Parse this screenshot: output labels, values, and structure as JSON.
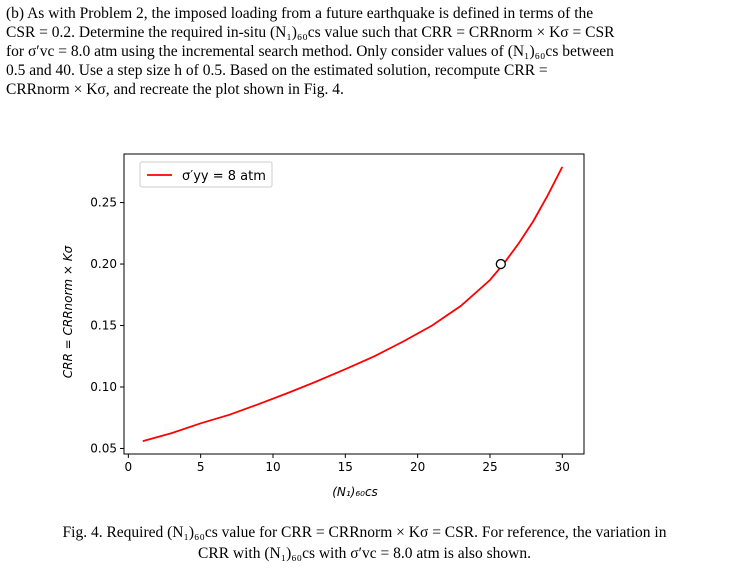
{
  "problem": {
    "lines": [
      "(b) As with Problem 2, the imposed loading from a future earthquake is defined in terms of the",
      "CSR = 0.2. Determine the required in-situ (N₁)₆₀cs value such that CRR = CRRnorm × Kσ = CSR",
      "for σ′vc = 8.0 atm using the incremental search method. Only consider values of (N₁)₆₀cs between",
      "0.5 and 40. Use a step size h of 0.5. Based on the estimated solution, recompute CRR =",
      "CRRnorm × Kσ, and recreate the plot shown in Fig. 4."
    ]
  },
  "caption": {
    "line1": "Fig. 4. Required (N₁)₆₀cs value for CRR = CRRnorm × Kσ = CSR. For reference, the variation in",
    "line2": "CRR with (N₁)₆₀cs with σ′vc = 8.0 atm is also shown."
  },
  "chart_data": {
    "type": "line",
    "xlabel": "(N₁)₆₀cs",
    "ylabel": "CRR = CRRnorm × Kσ",
    "xlim": [
      -0.3,
      31.5
    ],
    "ylim": [
      0.0455,
      0.2895
    ],
    "xticks": [
      "0",
      "5",
      "10",
      "15",
      "20",
      "25",
      "30"
    ],
    "yticks": [
      "0.05",
      "0.10",
      "0.15",
      "0.20",
      "0.25"
    ],
    "legend": {
      "label": "σ′yy = 8 atm",
      "location": "top-left"
    },
    "series": [
      {
        "name": "σ′yy = 8 atm",
        "color": "#ff0000",
        "x": [
          1,
          3,
          5,
          7,
          9,
          11,
          13,
          15,
          17,
          19,
          21,
          23,
          25,
          26,
          27,
          28,
          29,
          30
        ],
        "y": [
          0.056,
          0.0625,
          0.0705,
          0.0775,
          0.086,
          0.095,
          0.1045,
          0.1145,
          0.125,
          0.137,
          0.15,
          0.166,
          0.187,
          0.201,
          0.217,
          0.235,
          0.256,
          0.279
        ]
      }
    ],
    "marker": {
      "x": 25.75,
      "y": 0.2,
      "style": "open-circle"
    },
    "grid": false
  }
}
